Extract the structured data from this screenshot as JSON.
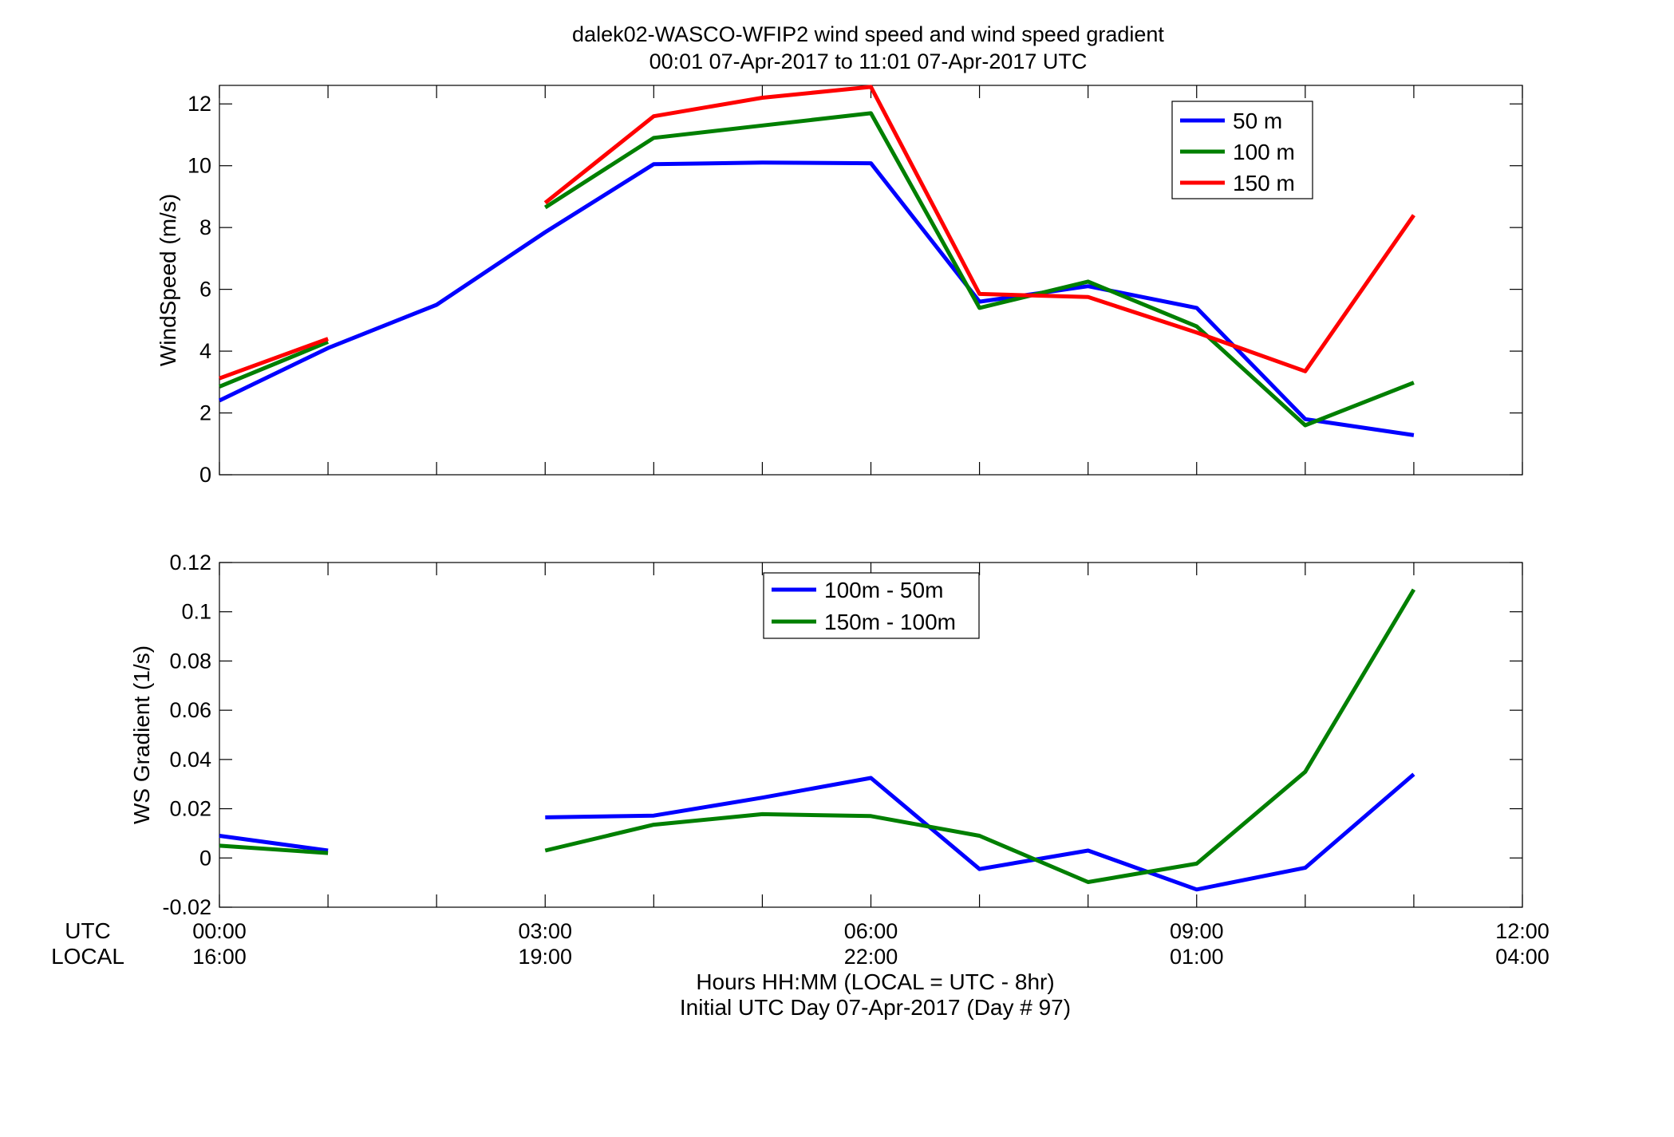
{
  "title": {
    "line1": "dalek02-WASCO-WFIP2  wind speed and wind speed gradient",
    "line2": "00:01 07-Apr-2017 to 11:01 07-Apr-2017  UTC"
  },
  "xaxis": {
    "row_label_utc": "UTC",
    "row_label_local": "LOCAL",
    "utc_ticks": [
      "00:00",
      "03:00",
      "06:00",
      "09:00",
      "12:00"
    ],
    "local_ticks": [
      "16:00",
      "19:00",
      "22:00",
      "01:00",
      "04:00"
    ],
    "label_line1": "Hours HH:MM  (LOCAL = UTC - 8hr)",
    "label_line2": "Initial UTC Day 07-Apr-2017 (Day # 97)"
  },
  "chart_data": [
    {
      "type": "line",
      "ylabel": "WindSpeed (m/s)",
      "xlim": [
        0,
        12
      ],
      "ylim": [
        0,
        12.6
      ],
      "xticks": [
        0,
        1,
        2,
        3,
        4,
        5,
        6,
        7,
        8,
        9,
        10,
        11,
        12
      ],
      "yticks": [
        0,
        2,
        4,
        6,
        8,
        10,
        12
      ],
      "ytick_labels": [
        "0",
        "2",
        "4",
        "6",
        "8",
        "10",
        "12"
      ],
      "legend_position": "top-right",
      "x": [
        0,
        1,
        2,
        3,
        4,
        5,
        6,
        7,
        8,
        9,
        10,
        11
      ],
      "series": [
        {
          "name": "50 m",
          "color": "#0000ff",
          "values": [
            2.4,
            4.1,
            5.5,
            7.85,
            10.05,
            10.1,
            10.08,
            5.6,
            6.1,
            5.4,
            1.8,
            1.28
          ]
        },
        {
          "name": "100 m",
          "color": "#007f00",
          "values": [
            2.85,
            4.3,
            null,
            8.65,
            10.9,
            11.3,
            11.7,
            5.4,
            6.25,
            4.8,
            1.6,
            2.98
          ]
        },
        {
          "name": "150 m",
          "color": "#ff0000",
          "values": [
            3.12,
            4.4,
            null,
            8.8,
            11.6,
            12.2,
            12.55,
            5.85,
            5.75,
            4.6,
            3.35,
            8.4
          ]
        }
      ]
    },
    {
      "type": "line",
      "ylabel": "WS Gradient (1/s)",
      "xlim": [
        0,
        12
      ],
      "ylim": [
        -0.02,
        0.12
      ],
      "xticks": [
        0,
        1,
        2,
        3,
        4,
        5,
        6,
        7,
        8,
        9,
        10,
        11,
        12
      ],
      "yticks": [
        -0.02,
        0,
        0.02,
        0.04,
        0.06,
        0.08,
        0.1,
        0.12
      ],
      "ytick_labels": [
        "-0.02",
        "0",
        "0.02",
        "0.04",
        "0.06",
        "0.08",
        "0.1",
        "0.12"
      ],
      "legend_position": "top-center",
      "x": [
        0,
        1,
        2,
        3,
        4,
        5,
        6,
        7,
        8,
        9,
        10,
        11
      ],
      "series": [
        {
          "name": "100m - 50m",
          "color": "#0000ff",
          "values": [
            0.009,
            0.003,
            null,
            0.0165,
            0.0172,
            0.0245,
            0.0325,
            -0.0045,
            0.003,
            -0.0128,
            -0.004,
            0.034
          ]
        },
        {
          "name": "150m - 100m",
          "color": "#007f00",
          "values": [
            0.005,
            0.002,
            null,
            0.003,
            0.0135,
            0.0178,
            0.017,
            0.009,
            -0.0098,
            -0.0023,
            0.035,
            0.109
          ]
        }
      ]
    }
  ]
}
